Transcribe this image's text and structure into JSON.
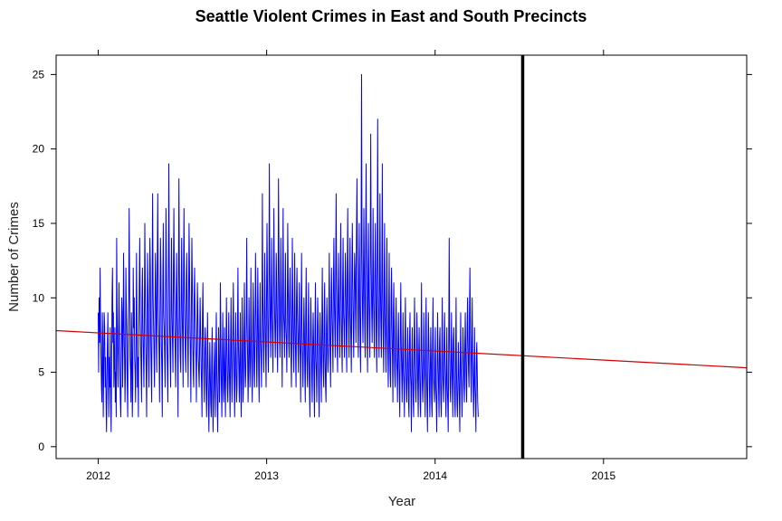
{
  "chart_data": {
    "type": "line",
    "title": "Seattle Violent Crimes in East and South Precincts",
    "xlabel": "Year",
    "ylabel": "Number of Crimes",
    "xlim": [
      2011.75,
      2015.85
    ],
    "ylim": [
      -0.8,
      26.3
    ],
    "x_ticks": [
      {
        "value": 2012,
        "label": "2012"
      },
      {
        "value": 2013,
        "label": "2013"
      },
      {
        "value": 2014,
        "label": "2014"
      },
      {
        "value": 2015,
        "label": "2015"
      }
    ],
    "y_ticks": [
      {
        "value": 0,
        "label": "0"
      },
      {
        "value": 5,
        "label": "5"
      },
      {
        "value": 10,
        "label": "10"
      },
      {
        "value": 15,
        "label": "15"
      },
      {
        "value": 20,
        "label": "20"
      },
      {
        "value": 25,
        "label": "25"
      }
    ],
    "series": [
      {
        "kind": "daily-counts",
        "color": "#0000ff",
        "x_start": 2012.0,
        "x_step_days": 1,
        "values": [
          9,
          5,
          10,
          7,
          12,
          8,
          6,
          4,
          3,
          9,
          7,
          2,
          5,
          9,
          8,
          4,
          6,
          3,
          1,
          4,
          7,
          9,
          5,
          2,
          6,
          4,
          8,
          3,
          1,
          5,
          10,
          12,
          7,
          9,
          4,
          6,
          8,
          3,
          5,
          2,
          14,
          9,
          6,
          4,
          7,
          11,
          8,
          5,
          3,
          2,
          6,
          10,
          9,
          4,
          7,
          13,
          8,
          6,
          3,
          5,
          12,
          9,
          7,
          4,
          2,
          8,
          10,
          16,
          11,
          6,
          5,
          3,
          9,
          7,
          2,
          4,
          12,
          8,
          10,
          6,
          5,
          3,
          7,
          13,
          9,
          4,
          6,
          2,
          8,
          11,
          14,
          9,
          7,
          5,
          3,
          10,
          12,
          8,
          6,
          4,
          9,
          15,
          11,
          7,
          5,
          2,
          8,
          13,
          10,
          6,
          4,
          9,
          14,
          12,
          7,
          5,
          3,
          11,
          17,
          10,
          8,
          6,
          4,
          9,
          13,
          11,
          7,
          5,
          12,
          17,
          10,
          8,
          6,
          3,
          9,
          14,
          12,
          7,
          5,
          2,
          11,
          15,
          9,
          8,
          6,
          4,
          10,
          16,
          12,
          7,
          5,
          3,
          11,
          19,
          13,
          8,
          6,
          4,
          10,
          14,
          9,
          7,
          5,
          12,
          16,
          11,
          8,
          6,
          4,
          10,
          13,
          9,
          7,
          2,
          11,
          18,
          12,
          8,
          6,
          5,
          10,
          14,
          9,
          7,
          4,
          12,
          16,
          10,
          8,
          6,
          5,
          11,
          13,
          9,
          7,
          4,
          10,
          15,
          12,
          8,
          6,
          3,
          9,
          14,
          11,
          7,
          5,
          4,
          10,
          12,
          9,
          7,
          6,
          3,
          8,
          11,
          9,
          6,
          5,
          4,
          7,
          10,
          8,
          6,
          4,
          2,
          9,
          11,
          7,
          5,
          3,
          6,
          8,
          7,
          4,
          2,
          5,
          9,
          6,
          3,
          1,
          4,
          7,
          5,
          3,
          2,
          6,
          8,
          4,
          1,
          3,
          5,
          7,
          4,
          2,
          6,
          9,
          5,
          3,
          1,
          4,
          8,
          6,
          3,
          5,
          11,
          7,
          4,
          2,
          5,
          9,
          6,
          3,
          4,
          8,
          5,
          2,
          6,
          10,
          7,
          4,
          3,
          5,
          9,
          6,
          4,
          2,
          7,
          10,
          6,
          3,
          5,
          8,
          11,
          7,
          4,
          2,
          6,
          9,
          5,
          3,
          4,
          8,
          12,
          7,
          5,
          3,
          6,
          9,
          4,
          2,
          5,
          10,
          7,
          3,
          4,
          8,
          11,
          6,
          4,
          5,
          9,
          14,
          8,
          6,
          3,
          5,
          10,
          7,
          4,
          6,
          12,
          8,
          5,
          3,
          7,
          11,
          9,
          5,
          4,
          8,
          13,
          10,
          6,
          4,
          7,
          12,
          9,
          5,
          3,
          8,
          11,
          7,
          6,
          4,
          9,
          17,
          10,
          7,
          5,
          8,
          13,
          9,
          6,
          4,
          10,
          15,
          11,
          7,
          5,
          9,
          19,
          12,
          8,
          6,
          10,
          14,
          9,
          7,
          5,
          11,
          16,
          10,
          8,
          6,
          9,
          13,
          11,
          7,
          5,
          10,
          18,
          12,
          8,
          6,
          9,
          14,
          10,
          7,
          4,
          11,
          16,
          9,
          8,
          6,
          10,
          13,
          8,
          7,
          5,
          9,
          15,
          11,
          7,
          6,
          10,
          12,
          9,
          6,
          4,
          8,
          14,
          10,
          7,
          5,
          9,
          13,
          8,
          6,
          4,
          10,
          12,
          9,
          7,
          5,
          8,
          11,
          7,
          6,
          3,
          9,
          13,
          8,
          6,
          4,
          7,
          10,
          8,
          5,
          3,
          9,
          12,
          7,
          5,
          4,
          8,
          11,
          6,
          4,
          2,
          7,
          10,
          8,
          5,
          3,
          6,
          9,
          7,
          4,
          2,
          8,
          11,
          6,
          5,
          3,
          7,
          10,
          8,
          4,
          2,
          6,
          9,
          7,
          5,
          3,
          8,
          12,
          7,
          5,
          4,
          9,
          11,
          6,
          4,
          3,
          8,
          10,
          7,
          5,
          6,
          9,
          13,
          8,
          6,
          4,
          10,
          12,
          9,
          7,
          5,
          11,
          14,
          10,
          8,
          6,
          12,
          17,
          11,
          7,
          5,
          10,
          13,
          9,
          8,
          6,
          12,
          15,
          10,
          7,
          5,
          11,
          14,
          9,
          8,
          6,
          10,
          13,
          11,
          7,
          5,
          12,
          16,
          10,
          8,
          6,
          11,
          14,
          9,
          7,
          5,
          12,
          15,
          11,
          8,
          6,
          10,
          13,
          12,
          9,
          7,
          14,
          18,
          12,
          8,
          6,
          11,
          15,
          10,
          7,
          5,
          12,
          25,
          13,
          9,
          7,
          11,
          16,
          12,
          8,
          6,
          14,
          19,
          11,
          7,
          5,
          12,
          15,
          10,
          8,
          6,
          13,
          21,
          12,
          9,
          7,
          11,
          16,
          10,
          8,
          6,
          12,
          15,
          11,
          7,
          5,
          13,
          22,
          12,
          8,
          6,
          10,
          17,
          11,
          8,
          6,
          12,
          19,
          10,
          7,
          5,
          11,
          15,
          9,
          7,
          5,
          10,
          14,
          8,
          6,
          4,
          9,
          13,
          7,
          5,
          4,
          10,
          12,
          8,
          6,
          3,
          9,
          11,
          7,
          5,
          4,
          8,
          10,
          6,
          5,
          3,
          7,
          9,
          6,
          4,
          2,
          8,
          11,
          7,
          5,
          3,
          6,
          9,
          5,
          4,
          2,
          7,
          10,
          6,
          4,
          3,
          5,
          8,
          6,
          3,
          2,
          7,
          9,
          5,
          4,
          1,
          6,
          8,
          5,
          3,
          2,
          7,
          10,
          6,
          4,
          3,
          5,
          9,
          7,
          4,
          2,
          6,
          8,
          5,
          3,
          2,
          7,
          11,
          6,
          4,
          3,
          5,
          9,
          6,
          4,
          2,
          8,
          10,
          5,
          3,
          1,
          6,
          9,
          7,
          4,
          2,
          5,
          8,
          6,
          3,
          2,
          7,
          10,
          5,
          4,
          3,
          6,
          8,
          4,
          3,
          1,
          5,
          9,
          6,
          4,
          2,
          7,
          8,
          5,
          3,
          2,
          6,
          10,
          5,
          4,
          3,
          7,
          9,
          6,
          4,
          2,
          5,
          8,
          4,
          3,
          1,
          6,
          14,
          7,
          4,
          3,
          5,
          9,
          6,
          4,
          2,
          7,
          8,
          5,
          3,
          2,
          6,
          10,
          5,
          3,
          2,
          4,
          7,
          5,
          3,
          1,
          6,
          9,
          5,
          4,
          2,
          5,
          8,
          6,
          4,
          3,
          7,
          9,
          6,
          4,
          3,
          8,
          10,
          7,
          5,
          4,
          9,
          12,
          8,
          5,
          3,
          7,
          10,
          6,
          4,
          2,
          5,
          8,
          4,
          3,
          1,
          6,
          7,
          5,
          3,
          2
        ]
      },
      {
        "kind": "trend",
        "color": "#cc0000",
        "x": [
          2011.75,
          2015.85
        ],
        "values": [
          7.8,
          5.3
        ]
      }
    ],
    "reference_line": {
      "x": 2014.52,
      "color": "#000000"
    },
    "grid": false,
    "legend": "none"
  }
}
